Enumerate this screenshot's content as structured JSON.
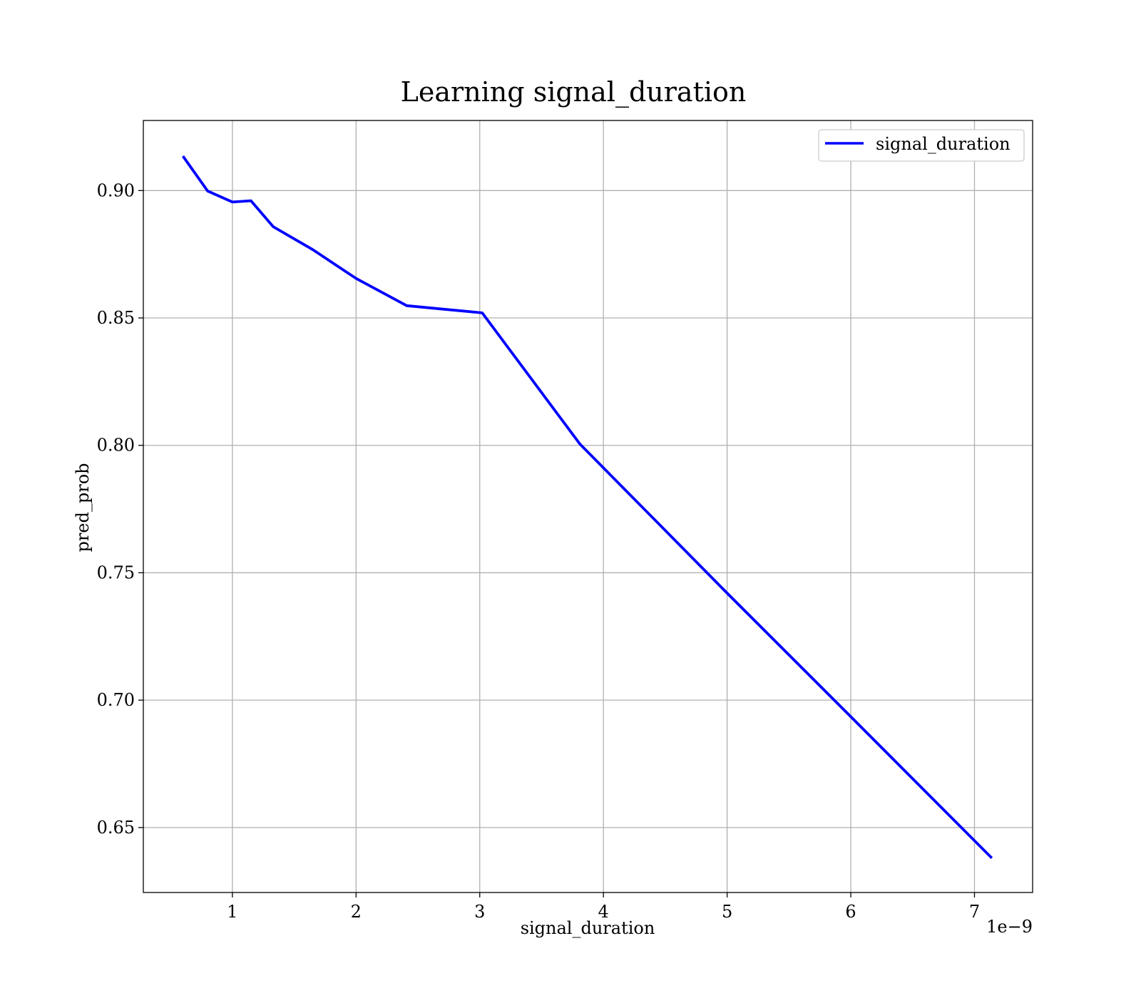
{
  "chart_data": {
    "type": "line",
    "title": "Learning signal_duration",
    "xlabel": "signal_duration",
    "ylabel": "pred_prob",
    "x_offset_label": "1e−9",
    "xlim": [
      0.28,
      7.47
    ],
    "ylim": [
      0.6245,
      0.9275
    ],
    "x_ticks": [
      1,
      2,
      3,
      4,
      5,
      6,
      7
    ],
    "x_tick_labels": [
      "1",
      "2",
      "3",
      "4",
      "5",
      "6",
      "7"
    ],
    "y_ticks": [
      0.65,
      0.7,
      0.75,
      0.8,
      0.85,
      0.9
    ],
    "y_tick_labels": [
      "0.65",
      "0.70",
      "0.75",
      "0.80",
      "0.85",
      "0.90"
    ],
    "grid": true,
    "legend_position": "top-right",
    "series": [
      {
        "name": "signal_duration",
        "color": "#0000ff",
        "x": [
          0.6,
          0.8,
          1.0,
          1.15,
          1.33,
          1.65,
          2.0,
          2.41,
          3.02,
          3.81,
          4.4,
          5.0,
          6.0,
          7.14
        ],
        "y": [
          0.9135,
          0.8998,
          0.8955,
          0.896,
          0.8858,
          0.8768,
          0.8655,
          0.8548,
          0.852,
          0.8005,
          0.7715,
          0.742,
          0.6935,
          0.638
        ]
      }
    ]
  }
}
